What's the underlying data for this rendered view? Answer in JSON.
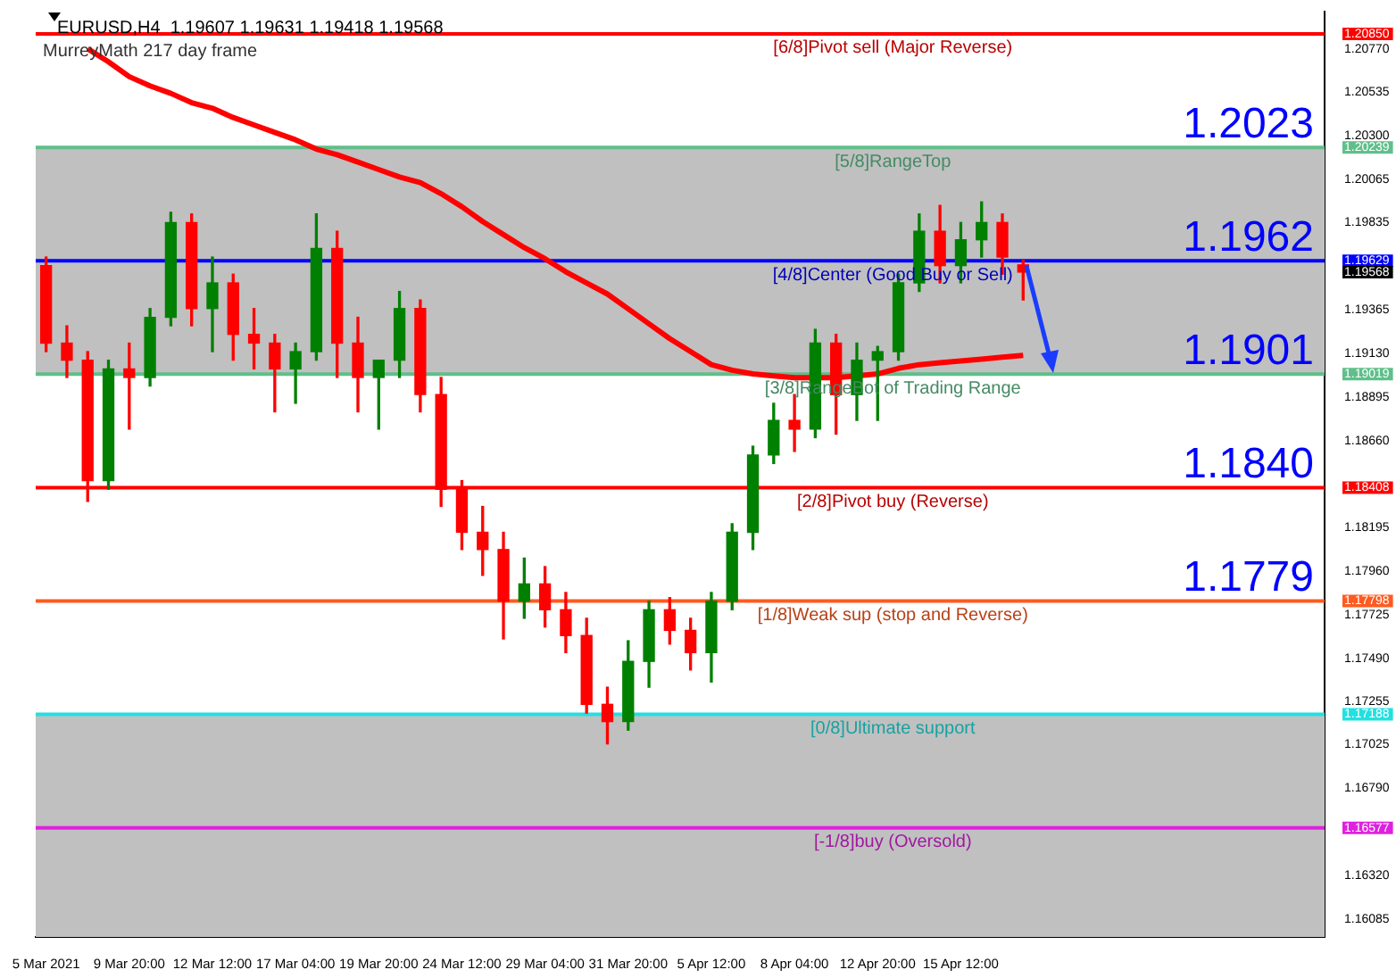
{
  "chart_data": {
    "type": "candlestick",
    "title": "EURUSD,H4  1.19607 1.19631 1.19418 1.19568",
    "subtitle": "MurreyMath 217 day frame",
    "categories": [
      "5 Mar 2021",
      null,
      null,
      null,
      "9 Mar 20:00",
      null,
      null,
      null,
      "12 Mar 12:00",
      null,
      null,
      null,
      "17 Mar 04:00",
      null,
      null,
      null,
      "19 Mar 20:00",
      null,
      null,
      null,
      "24 Mar 12:00",
      null,
      null,
      null,
      "29 Mar 04:00",
      null,
      null,
      null,
      "31 Mar 20:00",
      null,
      null,
      null,
      "5 Apr 12:00",
      null,
      null,
      null,
      "8 Apr 04:00",
      null,
      null,
      null,
      "12 Apr 20:00",
      null,
      null,
      null,
      "15 Apr 12:00",
      null,
      null,
      null,
      null,
      null,
      null,
      null,
      null,
      null,
      null,
      null,
      null,
      null,
      null,
      null,
      null,
      null
    ],
    "ohlc": [
      [
        1.19603,
        1.19649,
        1.1914,
        1.19186
      ],
      [
        1.19186,
        1.19279,
        1.19001,
        1.19094
      ],
      [
        1.19094,
        1.1914,
        1.18334,
        1.18446
      ],
      [
        1.18446,
        1.19094,
        1.18399,
        1.19047
      ],
      [
        1.19047,
        1.19186,
        1.18723,
        1.19001
      ],
      [
        1.19001,
        1.19372,
        1.18955,
        1.19325
      ],
      [
        1.19325,
        1.1989,
        1.19279,
        1.19835
      ],
      [
        1.19835,
        1.19881,
        1.19279,
        1.19372
      ],
      [
        1.19372,
        1.19649,
        1.1914,
        1.1951
      ],
      [
        1.1951,
        1.19557,
        1.19094,
        1.19233
      ],
      [
        1.19233,
        1.19372,
        1.19047,
        1.19186
      ],
      [
        1.19186,
        1.19233,
        1.18816,
        1.19047
      ],
      [
        1.19047,
        1.19186,
        1.18862,
        1.1914
      ],
      [
        1.1914,
        1.19881,
        1.19094,
        1.19696
      ],
      [
        1.19696,
        1.19788,
        1.19001,
        1.19186
      ],
      [
        1.19186,
        1.19325,
        1.18816,
        1.19001
      ],
      [
        1.19001,
        1.19094,
        1.18723,
        1.19094
      ],
      [
        1.19094,
        1.19464,
        1.19001,
        1.19372
      ],
      [
        1.19372,
        1.19418,
        1.18816,
        1.18909
      ],
      [
        1.18909,
        1.19001,
        1.18307,
        1.18399
      ],
      [
        1.18399,
        1.18446,
        1.18075,
        1.18168
      ],
      [
        1.18168,
        1.18307,
        1.17936,
        1.18075
      ],
      [
        1.18075,
        1.18168,
        1.17594,
        1.17797
      ],
      [
        1.17797,
        1.18029,
        1.17705,
        1.1789
      ],
      [
        1.1789,
        1.17983,
        1.17658,
        1.17751
      ],
      [
        1.17751,
        1.17844,
        1.1752,
        1.17612
      ],
      [
        1.17612,
        1.17705,
        1.17195,
        1.17242
      ],
      [
        1.17242,
        1.17334,
        1.17029,
        1.17149
      ],
      [
        1.17149,
        1.17584,
        1.17103,
        1.17473
      ],
      [
        1.17473,
        1.17797,
        1.17334,
        1.17751
      ],
      [
        1.17751,
        1.17816,
        1.17566,
        1.1764
      ],
      [
        1.1764,
        1.17705,
        1.17427,
        1.1752
      ],
      [
        1.1752,
        1.17844,
        1.17362,
        1.17797
      ],
      [
        1.17797,
        1.18214,
        1.17751,
        1.18168
      ],
      [
        1.18168,
        1.18631,
        1.18075,
        1.18584
      ],
      [
        1.18584,
        1.18862,
        1.18538,
        1.1877
      ],
      [
        1.1877,
        1.18909,
        1.18603,
        1.18723
      ],
      [
        1.18723,
        1.1926,
        1.18677,
        1.19186
      ],
      [
        1.19186,
        1.19233,
        1.18696,
        1.18909
      ],
      [
        1.18909,
        1.19186,
        1.1877,
        1.19094
      ],
      [
        1.19094,
        1.19168,
        1.1877,
        1.1914
      ],
      [
        1.1914,
        1.19557,
        1.19094,
        1.1951
      ],
      [
        1.1951,
        1.19881,
        1.19464,
        1.19788
      ],
      [
        1.19788,
        1.19927,
        1.1951,
        1.19603
      ],
      [
        1.19603,
        1.19835,
        1.1951,
        1.19742
      ],
      [
        1.19742,
        1.19946,
        1.19649,
        1.19835
      ],
      [
        1.19835,
        1.19881,
        1.19557,
        1.19649
      ],
      [
        1.19607,
        1.19631,
        1.19418,
        1.19568
      ],
      null,
      null,
      null,
      null,
      null,
      null,
      null,
      null,
      null,
      null,
      null,
      null,
      null,
      null
    ],
    "series": [
      {
        "type": "line",
        "color": "#ff0000",
        "values": [
          null,
          null,
          1.2077,
          1.207,
          1.2062,
          1.2057,
          1.2053,
          1.2048,
          1.2045,
          1.204,
          1.2036,
          1.2032,
          1.2028,
          1.2023,
          1.202,
          1.2016,
          1.2012,
          1.2008,
          1.2005,
          1.1999,
          1.1992,
          1.1984,
          1.1977,
          1.197,
          1.1964,
          1.1957,
          1.1951,
          1.1945,
          1.1937,
          1.1929,
          1.1921,
          1.1914,
          1.1907,
          1.1904,
          1.1902,
          1.1901,
          1.19,
          1.19,
          1.19,
          1.1901,
          1.1902,
          1.1905,
          1.1907,
          1.1908,
          1.1909,
          1.191,
          1.1911,
          1.1912,
          null,
          null,
          null,
          null,
          null,
          null,
          null,
          null,
          null,
          null,
          null,
          null,
          null,
          null
        ]
      }
    ],
    "ylim": [
      1.1599,
      1.2097
    ],
    "yticks": [
      {
        "value": 1.2085,
        "label": "1.20850"
      },
      {
        "value": 1.2077,
        "label": "1.20770"
      },
      {
        "value": 1.20535,
        "label": "1.20535"
      },
      {
        "value": 1.203,
        "label": "1.20300"
      },
      {
        "value": 1.20239,
        "label": "1.20239"
      },
      {
        "value": 1.20065,
        "label": "1.20065"
      },
      {
        "value": 1.19835,
        "label": "1.19835"
      },
      {
        "value": 1.19629,
        "label": "1.19629"
      },
      {
        "value": 1.19568,
        "label": "1.19568"
      },
      {
        "value": 1.19365,
        "label": "1.19365"
      },
      {
        "value": 1.1913,
        "label": "1.19130"
      },
      {
        "value": 1.19019,
        "label": "1.19019"
      },
      {
        "value": 1.18895,
        "label": "1.18895"
      },
      {
        "value": 1.1866,
        "label": "1.18660"
      },
      {
        "value": 1.18408,
        "label": "1.18408"
      },
      {
        "value": 1.18195,
        "label": "1.18195"
      },
      {
        "value": 1.1796,
        "label": "1.17960"
      },
      {
        "value": 1.17798,
        "label": "1.17798"
      },
      {
        "value": 1.17725,
        "label": "1.17725"
      },
      {
        "value": 1.1749,
        "label": "1.17490"
      },
      {
        "value": 1.17255,
        "label": "1.17255"
      },
      {
        "value": 1.17188,
        "label": "1.17188"
      },
      {
        "value": 1.17025,
        "label": "1.17025"
      },
      {
        "value": 1.1679,
        "label": "1.16790"
      },
      {
        "value": 1.16577,
        "label": "1.16577"
      },
      {
        "value": 1.1632,
        "label": "1.16320"
      },
      {
        "value": 1.16085,
        "label": "1.16085"
      }
    ],
    "bands": [
      {
        "axis": "y",
        "from": 1.19019,
        "to": 1.20239,
        "color": "#c0c0c0"
      },
      {
        "axis": "y",
        "from": 1.1599,
        "to": 1.17188,
        "color": "#c0c0c0"
      }
    ],
    "ref_lines": [
      {
        "axis": "y",
        "value": 1.2085,
        "label": "[6/8]Pivot sell (Major Reverse)",
        "color": "#ff0000"
      },
      {
        "axis": "y",
        "value": 1.20239,
        "label": "[5/8]RangeTop",
        "color": "#5fbf8a"
      },
      {
        "axis": "y",
        "value": 1.19629,
        "label": "[4/8]Center (Good Buy or Sell)",
        "color": "#0000ff"
      },
      {
        "axis": "y",
        "value": 1.19019,
        "label": "[3/8]RangeBot of Trading Range",
        "color": "#5fbf8a"
      },
      {
        "axis": "y",
        "value": 1.18408,
        "label": "[2/8]Pivot buy (Reverse)",
        "color": "#ff0000"
      },
      {
        "axis": "y",
        "value": 1.17798,
        "label": "[1/8]Weak sup (stop and Reverse)",
        "color": "#ff5a1f"
      },
      {
        "axis": "y",
        "value": 1.17188,
        "label": "[0/8]Ultimate support",
        "color": "#22e0e0"
      },
      {
        "axis": "y",
        "value": 1.16577,
        "label": "[-1/8]buy (Oversold)",
        "color": "#e020e0"
      }
    ],
    "annotations": [
      {
        "text": "1.2023",
        "y": 1.2023
      },
      {
        "text": "1.1962",
        "y": 1.1962
      },
      {
        "text": "1.1901",
        "y": 1.1901
      },
      {
        "text": "1.1840",
        "y": 1.184
      },
      {
        "text": "1.1779",
        "y": 1.1779
      }
    ]
  }
}
